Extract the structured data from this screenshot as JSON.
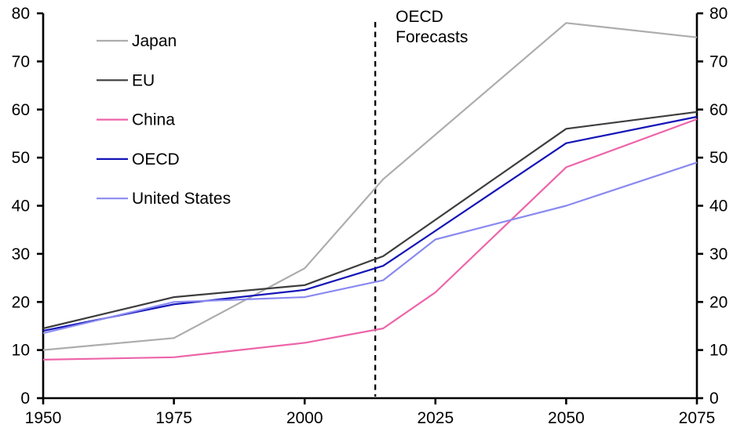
{
  "chart_data": {
    "type": "line",
    "title": "",
    "xlabel": "",
    "ylabel": "",
    "xlim": [
      1950,
      2075
    ],
    "ylim": [
      0,
      80
    ],
    "grid": false,
    "x_tick_labels": [
      "1950",
      "1975",
      "2000",
      "2025",
      "2050",
      "2075"
    ],
    "x_tick_values": [
      1950,
      1975,
      2000,
      2025,
      2050,
      2075
    ],
    "y_tick_labels": [
      "0",
      "10",
      "20",
      "30",
      "40",
      "50",
      "60",
      "70",
      "80"
    ],
    "y_tick_values": [
      0,
      10,
      20,
      30,
      40,
      50,
      60,
      70,
      80
    ],
    "y_axis_sides": [
      "left",
      "right"
    ],
    "legend_position": "top-left",
    "annotation": {
      "lines": [
        "OECD",
        "Forecasts"
      ],
      "divider_year": 2013.5,
      "divider_style": "dashed-vertical-line",
      "color": "#000000"
    },
    "series": [
      {
        "name": "Japan",
        "color": "#adadad",
        "points": [
          [
            1950,
            10
          ],
          [
            1975,
            12.5
          ],
          [
            2000,
            27
          ],
          [
            2015,
            45.5
          ],
          [
            2050,
            78
          ],
          [
            2075,
            75
          ]
        ]
      },
      {
        "name": "EU",
        "color": "#3d3d3d",
        "points": [
          [
            1950,
            14.5
          ],
          [
            1975,
            21
          ],
          [
            2000,
            23.5
          ],
          [
            2015,
            29.5
          ],
          [
            2050,
            56
          ],
          [
            2075,
            59.5
          ]
        ]
      },
      {
        "name": "China",
        "color": "#ed64a9",
        "points": [
          [
            1950,
            8
          ],
          [
            1975,
            8.5
          ],
          [
            2000,
            11.5
          ],
          [
            2015,
            14.5
          ],
          [
            2025,
            22
          ],
          [
            2050,
            48
          ],
          [
            2075,
            58
          ]
        ]
      },
      {
        "name": "OECD",
        "color": "#1414b8",
        "points": [
          [
            1950,
            14
          ],
          [
            1975,
            19.5
          ],
          [
            2000,
            22.5
          ],
          [
            2015,
            27.5
          ],
          [
            2050,
            53
          ],
          [
            2075,
            58.5
          ]
        ]
      },
      {
        "name": "United States",
        "color": "#8a8af0",
        "points": [
          [
            1950,
            13.5
          ],
          [
            1975,
            20
          ],
          [
            2000,
            21
          ],
          [
            2015,
            24.5
          ],
          [
            2025,
            33
          ],
          [
            2050,
            40
          ],
          [
            2075,
            49
          ]
        ]
      }
    ],
    "axis_color": "#000000"
  }
}
